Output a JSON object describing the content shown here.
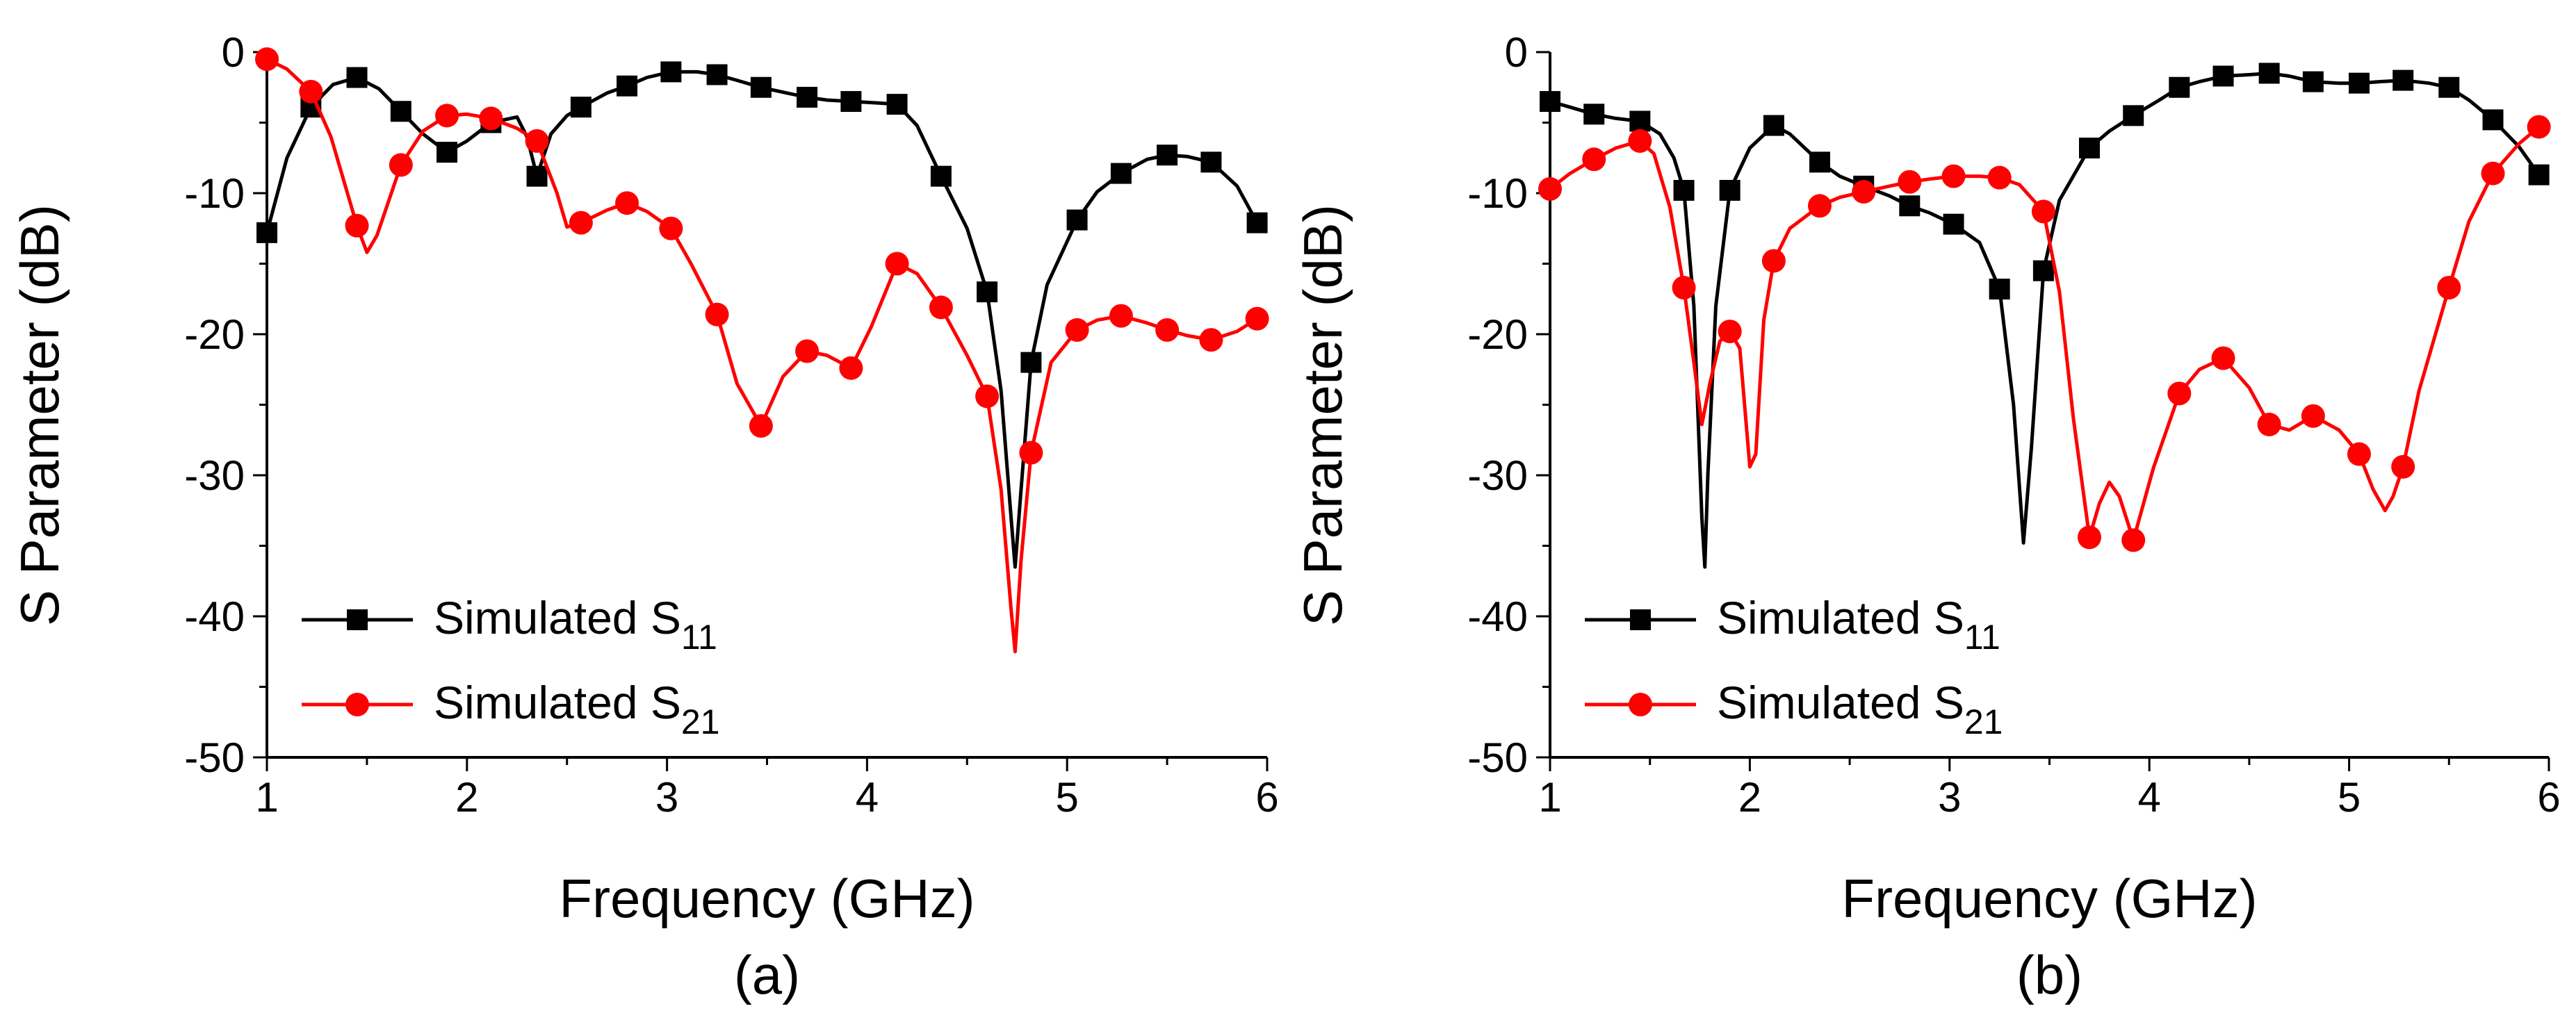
{
  "chart_data": [
    {
      "type": "line",
      "panel_label": "(a)",
      "xlabel": "Frequency (GHz)",
      "ylabel": "S Parameter (dB)",
      "xlim": [
        1,
        6
      ],
      "ylim": [
        -50,
        0
      ],
      "xticks": [
        "1",
        "2",
        "3",
        "4",
        "5",
        "6"
      ],
      "yticks": [
        "0",
        "-10",
        "-20",
        "-30",
        "-40",
        "-50"
      ],
      "grid": false,
      "legend_position": "bottom-left",
      "series": [
        {
          "name": "Simulated S11",
          "name_main": "Simulated S",
          "name_sub": "11",
          "color": "#000000",
          "marker": "square",
          "x": [
            1.0,
            1.22,
            1.45,
            1.67,
            1.9,
            2.12,
            2.35,
            2.57,
            2.8,
            3.02,
            3.25,
            3.47,
            3.7,
            3.92,
            4.15,
            4.37,
            4.6,
            4.82,
            5.05,
            5.27,
            5.5,
            5.72,
            5.95
          ],
          "values": [
            -12.8,
            -3.9,
            -1.8,
            -4.2,
            -7.1,
            -5.0,
            -8.8,
            -3.9,
            -2.4,
            -1.4,
            -1.6,
            -2.5,
            -3.2,
            -3.5,
            -3.7,
            -8.8,
            -17.0,
            -22.0,
            -11.9,
            -8.6,
            -7.3,
            -7.8,
            -12.1
          ],
          "curve": [
            [
              1.0,
              -12.8
            ],
            [
              1.1,
              -7.5
            ],
            [
              1.22,
              -3.9
            ],
            [
              1.33,
              -2.3
            ],
            [
              1.45,
              -1.8
            ],
            [
              1.56,
              -2.6
            ],
            [
              1.67,
              -4.2
            ],
            [
              1.78,
              -5.8
            ],
            [
              1.9,
              -7.1
            ],
            [
              2.0,
              -6.3
            ],
            [
              2.12,
              -5.0
            ],
            [
              2.25,
              -4.6
            ],
            [
              2.3,
              -6.0
            ],
            [
              2.35,
              -8.8
            ],
            [
              2.42,
              -5.8
            ],
            [
              2.5,
              -4.5
            ],
            [
              2.57,
              -3.9
            ],
            [
              2.7,
              -2.9
            ],
            [
              2.8,
              -2.4
            ],
            [
              2.9,
              -1.8
            ],
            [
              3.02,
              -1.4
            ],
            [
              3.15,
              -1.4
            ],
            [
              3.25,
              -1.6
            ],
            [
              3.35,
              -2.0
            ],
            [
              3.47,
              -2.5
            ],
            [
              3.6,
              -2.9
            ],
            [
              3.7,
              -3.2
            ],
            [
              3.8,
              -3.4
            ],
            [
              3.92,
              -3.5
            ],
            [
              4.05,
              -3.6
            ],
            [
              4.15,
              -3.7
            ],
            [
              4.25,
              -5.2
            ],
            [
              4.37,
              -8.8
            ],
            [
              4.5,
              -12.5
            ],
            [
              4.6,
              -17.0
            ],
            [
              4.67,
              -24.0
            ],
            [
              4.72,
              -33.0
            ],
            [
              4.74,
              -36.5
            ],
            [
              4.77,
              -31.0
            ],
            [
              4.82,
              -22.0
            ],
            [
              4.9,
              -16.5
            ],
            [
              5.05,
              -11.9
            ],
            [
              5.15,
              -9.9
            ],
            [
              5.27,
              -8.6
            ],
            [
              5.4,
              -7.6
            ],
            [
              5.5,
              -7.3
            ],
            [
              5.6,
              -7.4
            ],
            [
              5.72,
              -7.8
            ],
            [
              5.85,
              -9.5
            ],
            [
              5.95,
              -12.1
            ]
          ]
        },
        {
          "name": "Simulated S21",
          "name_main": "Simulated S",
          "name_sub": "21",
          "color": "#ff0000",
          "marker": "circle",
          "x": [
            1.0,
            1.22,
            1.45,
            1.67,
            1.9,
            2.12,
            2.35,
            2.57,
            2.8,
            3.02,
            3.25,
            3.47,
            3.7,
            3.92,
            4.15,
            4.37,
            4.6,
            4.82,
            5.05,
            5.27,
            5.5,
            5.72,
            5.95
          ],
          "values": [
            -0.5,
            -2.8,
            -12.3,
            -8.0,
            -4.5,
            -4.7,
            -6.3,
            -12.1,
            -10.7,
            -12.5,
            -18.6,
            -26.5,
            -21.2,
            -22.4,
            -15.0,
            -18.1,
            -24.4,
            -28.4,
            -19.7,
            -18.7,
            -19.7,
            -20.4,
            -18.9
          ],
          "curve": [
            [
              1.0,
              -0.5
            ],
            [
              1.1,
              -1.2
            ],
            [
              1.22,
              -2.8
            ],
            [
              1.32,
              -6.0
            ],
            [
              1.45,
              -12.3
            ],
            [
              1.5,
              -14.2
            ],
            [
              1.55,
              -13.0
            ],
            [
              1.67,
              -8.0
            ],
            [
              1.78,
              -5.6
            ],
            [
              1.9,
              -4.5
            ],
            [
              2.0,
              -4.4
            ],
            [
              2.12,
              -4.7
            ],
            [
              2.25,
              -5.4
            ],
            [
              2.35,
              -6.3
            ],
            [
              2.45,
              -10.0
            ],
            [
              2.5,
              -12.4
            ],
            [
              2.57,
              -12.1
            ],
            [
              2.7,
              -11.2
            ],
            [
              2.8,
              -10.7
            ],
            [
              2.9,
              -11.3
            ],
            [
              3.02,
              -12.5
            ],
            [
              3.12,
              -15.0
            ],
            [
              3.25,
              -18.6
            ],
            [
              3.35,
              -23.5
            ],
            [
              3.47,
              -26.5
            ],
            [
              3.58,
              -23.0
            ],
            [
              3.7,
              -21.2
            ],
            [
              3.8,
              -21.5
            ],
            [
              3.92,
              -22.4
            ],
            [
              4.02,
              -19.5
            ],
            [
              4.15,
              -15.0
            ],
            [
              4.25,
              -15.7
            ],
            [
              4.37,
              -18.1
            ],
            [
              4.5,
              -21.5
            ],
            [
              4.6,
              -24.4
            ],
            [
              4.67,
              -31.0
            ],
            [
              4.72,
              -39.5
            ],
            [
              4.74,
              -42.5
            ],
            [
              4.77,
              -36.0
            ],
            [
              4.82,
              -28.4
            ],
            [
              4.92,
              -22.0
            ],
            [
              5.05,
              -19.7
            ],
            [
              5.15,
              -19.0
            ],
            [
              5.27,
              -18.7
            ],
            [
              5.4,
              -19.2
            ],
            [
              5.5,
              -19.7
            ],
            [
              5.6,
              -20.1
            ],
            [
              5.72,
              -20.4
            ],
            [
              5.85,
              -19.8
            ],
            [
              5.95,
              -18.9
            ]
          ]
        }
      ]
    },
    {
      "type": "line",
      "panel_label": "(b)",
      "xlabel": "Frequency (GHz)",
      "ylabel": "S Parameter (dB)",
      "xlim": [
        1,
        6
      ],
      "ylim": [
        -50,
        0
      ],
      "xticks": [
        "1",
        "2",
        "3",
        "4",
        "5",
        "6"
      ],
      "yticks": [
        "0",
        "-10",
        "-20",
        "-30",
        "-40",
        "-50"
      ],
      "grid": false,
      "legend_position": "bottom-left",
      "series": [
        {
          "name": "Simulated S11",
          "name_main": "Simulated S",
          "name_sub": "11",
          "color": "#000000",
          "marker": "square",
          "x": [
            1.0,
            1.22,
            1.45,
            1.67,
            1.9,
            2.12,
            2.35,
            2.57,
            2.8,
            3.02,
            3.25,
            3.47,
            3.7,
            3.92,
            4.15,
            4.37,
            4.6,
            4.82,
            5.05,
            5.27,
            5.5,
            5.72,
            5.95
          ],
          "values": [
            -3.5,
            -4.4,
            -4.9,
            -9.8,
            -9.8,
            -5.2,
            -7.8,
            -9.5,
            -10.9,
            -12.2,
            -16.8,
            -15.5,
            -6.8,
            -4.5,
            -2.5,
            -1.7,
            -1.5,
            -2.1,
            -2.2,
            -2.0,
            -2.5,
            -4.8,
            -8.7
          ],
          "curve": [
            [
              1.0,
              -3.5
            ],
            [
              1.1,
              -3.9
            ],
            [
              1.22,
              -4.4
            ],
            [
              1.33,
              -4.7
            ],
            [
              1.45,
              -4.9
            ],
            [
              1.55,
              -5.8
            ],
            [
              1.62,
              -7.5
            ],
            [
              1.67,
              -9.8
            ],
            [
              1.72,
              -18.0
            ],
            [
              1.76,
              -33.0
            ],
            [
              1.775,
              -36.5
            ],
            [
              1.79,
              -30.0
            ],
            [
              1.83,
              -18.0
            ],
            [
              1.9,
              -9.8
            ],
            [
              2.0,
              -6.8
            ],
            [
              2.12,
              -5.2
            ],
            [
              2.2,
              -5.8
            ],
            [
              2.35,
              -7.8
            ],
            [
              2.45,
              -8.8
            ],
            [
              2.57,
              -9.5
            ],
            [
              2.7,
              -10.2
            ],
            [
              2.8,
              -10.9
            ],
            [
              2.9,
              -11.4
            ],
            [
              3.02,
              -12.2
            ],
            [
              3.15,
              -13.5
            ],
            [
              3.25,
              -16.8
            ],
            [
              3.32,
              -25.0
            ],
            [
              3.37,
              -34.8
            ],
            [
              3.41,
              -28.0
            ],
            [
              3.47,
              -15.5
            ],
            [
              3.55,
              -10.5
            ],
            [
              3.7,
              -6.8
            ],
            [
              3.8,
              -5.6
            ],
            [
              3.92,
              -4.5
            ],
            [
              4.05,
              -3.4
            ],
            [
              4.15,
              -2.5
            ],
            [
              4.25,
              -2.1
            ],
            [
              4.37,
              -1.7
            ],
            [
              4.5,
              -1.6
            ],
            [
              4.6,
              -1.5
            ],
            [
              4.7,
              -1.7
            ],
            [
              4.82,
              -2.1
            ],
            [
              4.95,
              -2.2
            ],
            [
              5.05,
              -2.2
            ],
            [
              5.15,
              -2.1
            ],
            [
              5.27,
              -2.0
            ],
            [
              5.4,
              -2.2
            ],
            [
              5.5,
              -2.5
            ],
            [
              5.6,
              -3.4
            ],
            [
              5.72,
              -4.8
            ],
            [
              5.85,
              -6.7
            ],
            [
              5.95,
              -8.7
            ]
          ]
        },
        {
          "name": "Simulated S21",
          "name_main": "Simulated S",
          "name_sub": "21",
          "color": "#ff0000",
          "marker": "circle",
          "x": [
            1.0,
            1.22,
            1.45,
            1.67,
            1.9,
            2.12,
            2.35,
            2.57,
            2.8,
            3.02,
            3.25,
            3.47,
            3.7,
            3.92,
            4.15,
            4.37,
            4.6,
            4.82,
            5.05,
            5.27,
            5.5,
            5.72,
            5.95
          ],
          "values": [
            -9.7,
            -7.6,
            -6.3,
            -16.7,
            -19.8,
            -14.8,
            -10.9,
            -9.9,
            -9.2,
            -8.8,
            -8.9,
            -11.3,
            -34.4,
            -34.6,
            -24.2,
            -21.7,
            -26.4,
            -25.8,
            -28.5,
            -29.4,
            -16.7,
            -8.6,
            -5.3
          ],
          "curve": [
            [
              1.0,
              -9.7
            ],
            [
              1.1,
              -8.6
            ],
            [
              1.22,
              -7.6
            ],
            [
              1.33,
              -6.8
            ],
            [
              1.45,
              -6.3
            ],
            [
              1.52,
              -7.2
            ],
            [
              1.6,
              -11.0
            ],
            [
              1.67,
              -16.7
            ],
            [
              1.72,
              -22.0
            ],
            [
              1.76,
              -26.4
            ],
            [
              1.8,
              -23.5
            ],
            [
              1.85,
              -20.5
            ],
            [
              1.9,
              -19.8
            ],
            [
              1.95,
              -21.0
            ],
            [
              2.0,
              -29.4
            ],
            [
              2.03,
              -28.5
            ],
            [
              2.07,
              -19.0
            ],
            [
              2.12,
              -14.8
            ],
            [
              2.2,
              -12.5
            ],
            [
              2.35,
              -10.9
            ],
            [
              2.45,
              -10.3
            ],
            [
              2.57,
              -9.9
            ],
            [
              2.7,
              -9.5
            ],
            [
              2.8,
              -9.2
            ],
            [
              2.9,
              -9.0
            ],
            [
              3.02,
              -8.8
            ],
            [
              3.15,
              -8.8
            ],
            [
              3.25,
              -8.9
            ],
            [
              3.35,
              -9.4
            ],
            [
              3.47,
              -11.3
            ],
            [
              3.55,
              -17.0
            ],
            [
              3.62,
              -26.0
            ],
            [
              3.7,
              -34.4
            ],
            [
              3.75,
              -32.0
            ],
            [
              3.8,
              -30.5
            ],
            [
              3.85,
              -31.5
            ],
            [
              3.92,
              -34.6
            ],
            [
              4.02,
              -29.5
            ],
            [
              4.15,
              -24.2
            ],
            [
              4.25,
              -22.5
            ],
            [
              4.37,
              -21.7
            ],
            [
              4.5,
              -23.8
            ],
            [
              4.6,
              -26.4
            ],
            [
              4.7,
              -26.8
            ],
            [
              4.82,
              -25.8
            ],
            [
              4.95,
              -26.8
            ],
            [
              5.05,
              -28.5
            ],
            [
              5.12,
              -31.0
            ],
            [
              5.18,
              -32.5
            ],
            [
              5.22,
              -31.5
            ],
            [
              5.27,
              -29.4
            ],
            [
              5.35,
              -24.0
            ],
            [
              5.5,
              -16.7
            ],
            [
              5.6,
              -12.0
            ],
            [
              5.72,
              -8.6
            ],
            [
              5.85,
              -6.5
            ],
            [
              5.95,
              -5.3
            ]
          ]
        }
      ]
    }
  ]
}
